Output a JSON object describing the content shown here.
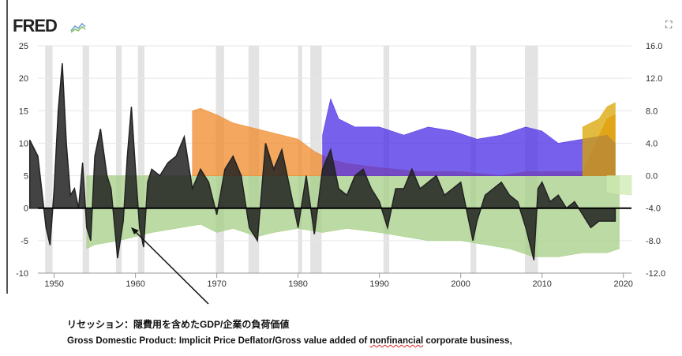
{
  "header": {
    "logo": "FRED",
    "expand_icon": "fullscreen-icon"
  },
  "caption": {
    "line1": "リセッション：隠費用を含めたGDP/企業の負荷価値",
    "line2_pre": "Gross Domestic Product: Implicit Price Deflator/Gross value added of ",
    "line2_err": "nonfinancial",
    "line2_post": " corporate business,"
  },
  "chart_data": {
    "type": "area",
    "xlim": [
      1948,
      2021
    ],
    "ylim_left": [
      -10,
      25
    ],
    "yticks_left": [
      "25",
      "20",
      "15",
      "10",
      "5",
      "0",
      "-5",
      "-10"
    ],
    "ylim_right": [
      -12,
      16
    ],
    "yticks_right": [
      "16.0",
      "12.0",
      "8.0",
      "4.0",
      "0.0",
      "-4.0",
      "-8.0",
      "-12.0"
    ],
    "xticks": [
      "1950",
      "1960",
      "1970",
      "1980",
      "1990",
      "2000",
      "2010",
      "2020"
    ],
    "recessions": [
      [
        1948.9,
        1949.8
      ],
      [
        1953.5,
        1954.3
      ],
      [
        1957.6,
        1958.3
      ],
      [
        1960.3,
        1961.1
      ],
      [
        1969.9,
        1970.9
      ],
      [
        1973.9,
        1975.2
      ],
      [
        1980,
        1980.5
      ],
      [
        1981.5,
        1982.9
      ],
      [
        1990.5,
        1991.2
      ],
      [
        2001.2,
        2001.9
      ],
      [
        2007.9,
        2009.5
      ]
    ],
    "series": [
      {
        "name": "green",
        "axis": "right",
        "color": "#a6cf85",
        "x": [
          1954,
          1955,
          1958,
          1960,
          1962,
          1965,
          1968,
          1970,
          1972,
          1975,
          1977,
          1980,
          1983,
          1986,
          1990,
          1993,
          1996,
          2000,
          2003,
          2006,
          2009,
          2012,
          2015,
          2018,
          2019.5
        ],
        "y": [
          -9,
          -8.5,
          -8,
          -7.5,
          -7,
          -6.5,
          -6,
          -7,
          -6.5,
          -7.5,
          -7,
          -6.5,
          -7,
          -6.5,
          -7,
          -7.5,
          -8,
          -8,
          -8.5,
          -9,
          -10,
          -10,
          -9.5,
          -9.5,
          -9
        ]
      },
      {
        "name": "orange",
        "axis": "right",
        "color": "#f0892a",
        "x": [
          1967,
          1968,
          1970,
          1972,
          1974,
          1976,
          1978,
          1980,
          1982,
          1984,
          1986,
          1990,
          1995,
          2000,
          2005,
          2008,
          2010,
          2015,
          2018,
          2019
        ],
        "y": [
          8,
          8.3,
          7.5,
          6.5,
          6,
          5.5,
          5,
          4.5,
          3,
          2,
          1.5,
          1,
          0.5,
          0.5,
          0,
          0.5,
          0.5,
          0.5,
          7,
          7.5
        ]
      },
      {
        "name": "blue",
        "axis": "right",
        "color": "#4a2ce6",
        "x": [
          1983,
          1984,
          1985,
          1987,
          1990,
          1993,
          1996,
          1999,
          2002,
          2005,
          2008,
          2010,
          2012,
          2015,
          2018,
          2019
        ],
        "y": [
          5,
          9.5,
          7,
          6,
          6,
          5,
          6,
          5.5,
          4.5,
          5,
          6,
          5.5,
          4,
          4.5,
          5,
          4
        ]
      },
      {
        "name": "gold",
        "axis": "right",
        "color": "#d9a400",
        "x": [
          2015,
          2016,
          2017,
          2018,
          2019
        ],
        "y": [
          6,
          6.5,
          7,
          8.5,
          9
        ]
      },
      {
        "name": "lightgreen",
        "axis": "right",
        "color": "#cdeab0",
        "x": [
          2018,
          2019,
          2020,
          2021
        ],
        "y": [
          -2,
          -2.2,
          -2.3,
          -2.4
        ]
      },
      {
        "name": "gdp-ratio",
        "axis": "left",
        "color": "#222",
        "x": [
          1947,
          1948,
          1949,
          1949.5,
          1950,
          1950.5,
          1951,
          1951.5,
          1952,
          1952.5,
          1953,
          1953.5,
          1954,
          1954.5,
          1955,
          1955.7,
          1956.5,
          1957,
          1957.8,
          1958.5,
          1959,
          1959.5,
          1960,
          1960.5,
          1961,
          1961.5,
          1962,
          1963,
          1964,
          1965,
          1966,
          1967,
          1968,
          1969,
          1970,
          1971,
          1972,
          1973,
          1974,
          1975,
          1976,
          1977,
          1978,
          1979,
          1980,
          1981,
          1982,
          1983,
          1984,
          1985,
          1986,
          1987,
          1988,
          1989,
          1990,
          1991,
          1992,
          1993,
          1994,
          1995,
          1996,
          1997,
          1998,
          1999,
          2000,
          2001,
          2001.5,
          2002,
          2003,
          2004,
          2005,
          2006,
          2007,
          2008,
          2009,
          2009.5,
          2010,
          2011,
          2012,
          2013,
          2014,
          2015,
          2016,
          2017,
          2018,
          2019
        ],
        "y": [
          10.5,
          8,
          -3,
          -5.7,
          3,
          15,
          22.3,
          10,
          2,
          3,
          0,
          7,
          -3,
          -5,
          8,
          12.2,
          5,
          3,
          -7.7,
          -2,
          8,
          15.6,
          6,
          -3,
          -6,
          4,
          6,
          5,
          7,
          8,
          11,
          3,
          6,
          4,
          -1,
          6,
          8,
          5,
          -3,
          -5,
          10,
          6,
          9,
          3,
          -3,
          5,
          -4,
          6,
          9,
          3,
          2,
          5,
          6,
          3,
          1,
          -3,
          3,
          3,
          6,
          3,
          4,
          5,
          2,
          3,
          4,
          -2,
          -5,
          -2,
          2,
          3,
          4,
          2,
          1,
          -3,
          -8,
          3,
          4,
          1,
          2,
          0,
          1,
          -1,
          -3,
          -2,
          -2,
          -2
        ]
      }
    ]
  }
}
